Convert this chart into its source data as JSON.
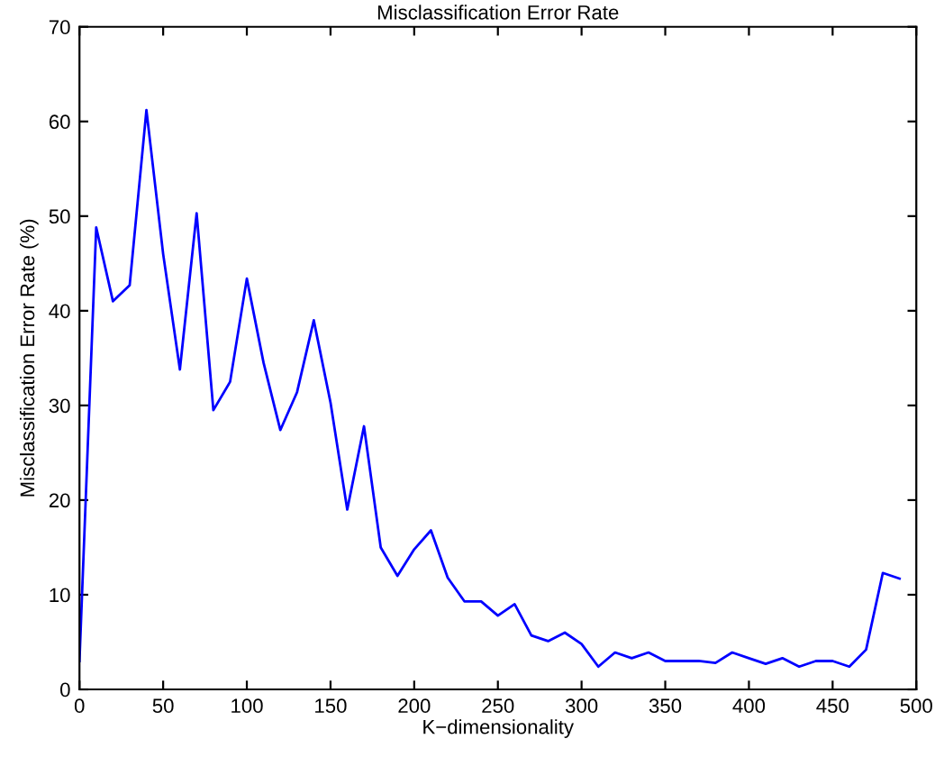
{
  "chart_data": {
    "type": "line",
    "title": "Misclassification Error Rate",
    "xlabel": "K−dimensionality",
    "ylabel": "Misclassification Error Rate (%)",
    "x": [
      0,
      10,
      20,
      30,
      40,
      50,
      60,
      70,
      80,
      90,
      100,
      110,
      120,
      130,
      140,
      150,
      160,
      170,
      180,
      190,
      200,
      210,
      220,
      230,
      240,
      250,
      260,
      270,
      280,
      290,
      300,
      310,
      320,
      330,
      340,
      350,
      360,
      370,
      380,
      390,
      400,
      410,
      420,
      430,
      440,
      450,
      460,
      470,
      480,
      490
    ],
    "series": [
      {
        "color": "#0000ff",
        "values": [
          3,
          48.8,
          41,
          42.7,
          61.2,
          46,
          33.8,
          50.3,
          29.5,
          32.5,
          43.4,
          34.5,
          27.4,
          31.4,
          39,
          30.3,
          19,
          27.8,
          15,
          12,
          14.8,
          16.8,
          11.8,
          9.3,
          9.3,
          7.8,
          9,
          5.7,
          5.1,
          6,
          4.8,
          2.4,
          3.9,
          3.3,
          3.9,
          3,
          3,
          3,
          2.8,
          3.9,
          3.3,
          2.7,
          3.3,
          2.4,
          3,
          3,
          2.4,
          4.2,
          12.3,
          11.7
        ]
      }
    ],
    "xlim": [
      0,
      500
    ],
    "ylim": [
      0,
      70
    ],
    "xticks": [
      0,
      50,
      100,
      150,
      200,
      250,
      300,
      350,
      400,
      450,
      500
    ],
    "yticks": [
      0,
      10,
      20,
      30,
      40,
      50,
      60,
      70
    ],
    "grid": false,
    "legend": false,
    "marker": "none",
    "line_style": "solid"
  }
}
